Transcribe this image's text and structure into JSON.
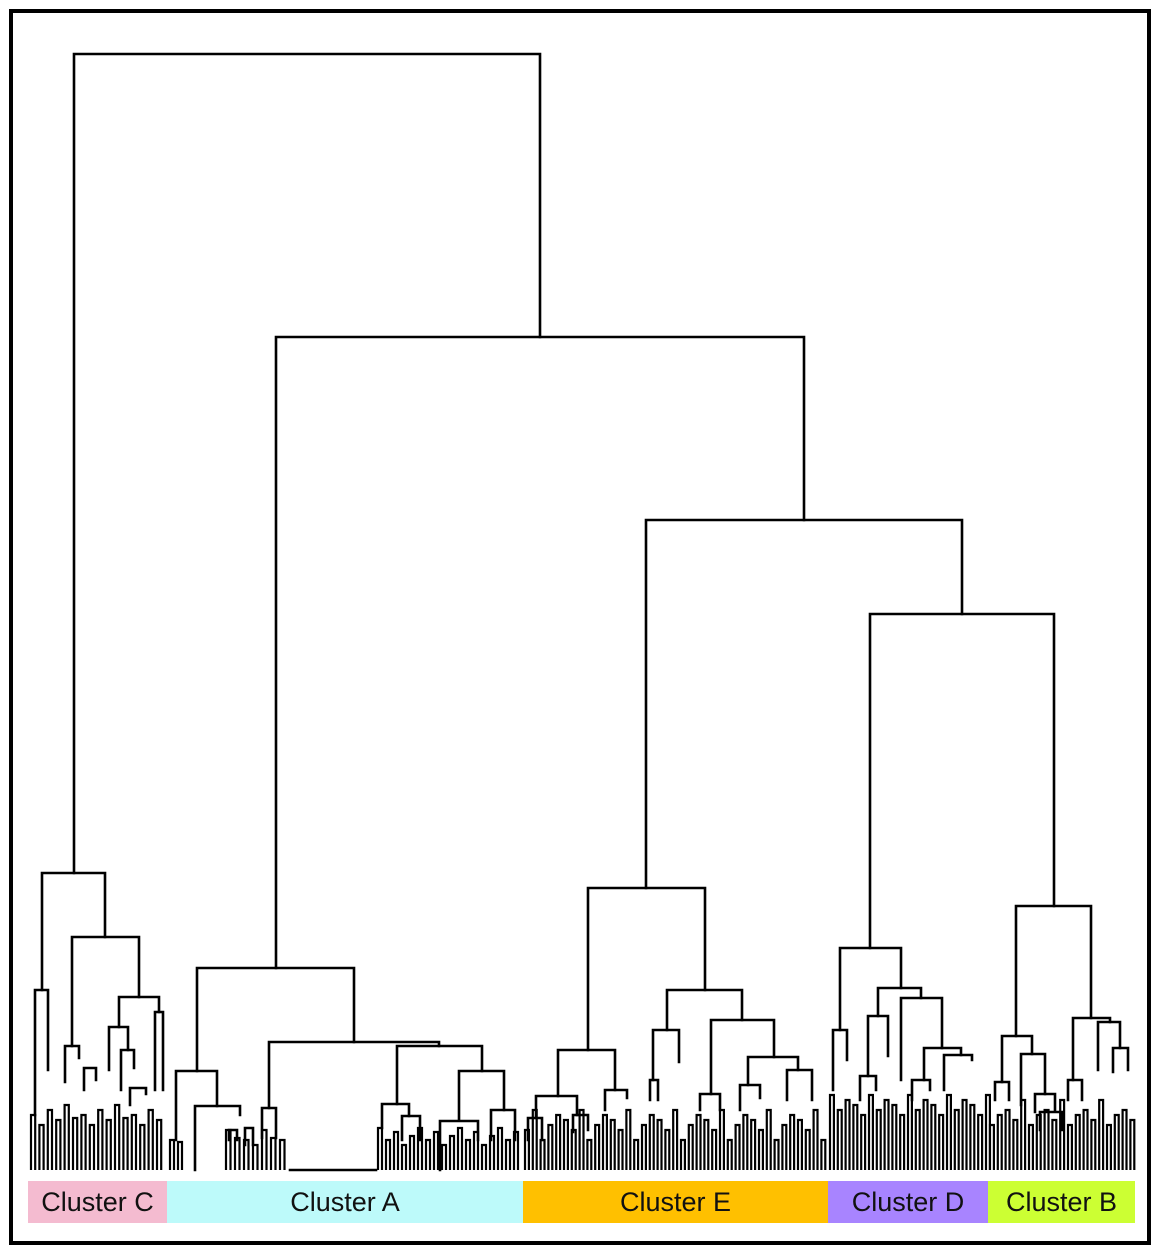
{
  "figure": {
    "frame_color": "#000000",
    "line_color": "#000000"
  },
  "clusters": [
    {
      "id": "c",
      "label": "Cluster C",
      "color": "#f4bbd0"
    },
    {
      "id": "a",
      "label": "Cluster A",
      "color": "#bdfafa"
    },
    {
      "id": "e",
      "label": "Cluster E",
      "color": "#ffc000"
    },
    {
      "id": "d",
      "label": "Cluster D",
      "color": "#a884ff"
    },
    {
      "id": "b",
      "label": "Cluster B",
      "color": "#ccff33"
    }
  ]
}
